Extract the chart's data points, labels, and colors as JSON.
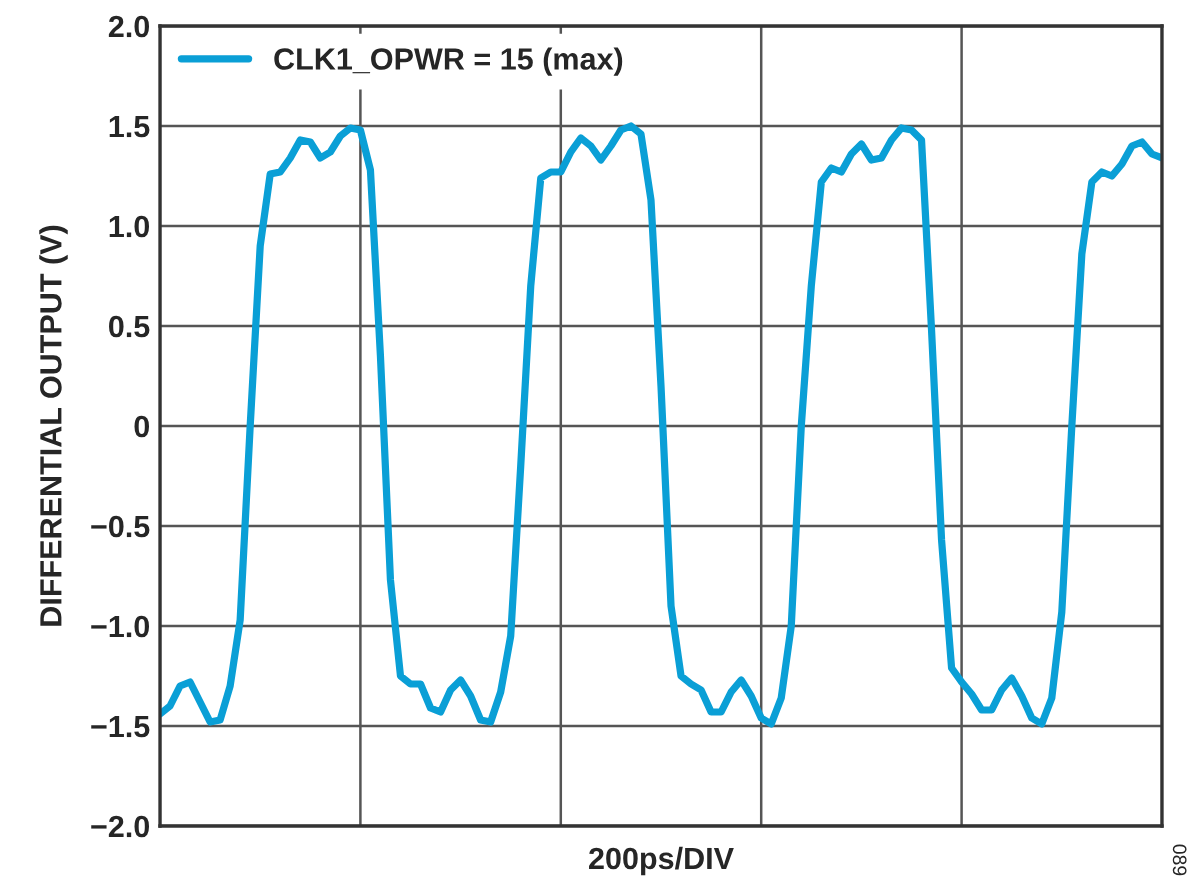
{
  "chart_data": {
    "type": "line",
    "xlabel": "200ps/DIV",
    "ylabel": "DIFFERENTIAL OUTPUT (V)",
    "categories": [
      null,
      null,
      null,
      null,
      null,
      null,
      null,
      null,
      null,
      null,
      null,
      null,
      null,
      null,
      null,
      null,
      null,
      null,
      null,
      null,
      null,
      null,
      null,
      null,
      null,
      null,
      null,
      null,
      null,
      null,
      null,
      null,
      null,
      null,
      null,
      null,
      null,
      null,
      null,
      null,
      null,
      null,
      null,
      null,
      null,
      null,
      null,
      null,
      null,
      null,
      null,
      null,
      null,
      null,
      null,
      null,
      null,
      null,
      null,
      null,
      null,
      null,
      null,
      null,
      null,
      null,
      null,
      null,
      null,
      null,
      null,
      null,
      null,
      null,
      null,
      null,
      null,
      null,
      null,
      null,
      null,
      null,
      null,
      null,
      null,
      null,
      null,
      null,
      null,
      null,
      null,
      null,
      null,
      null,
      null,
      null,
      null,
      null,
      null,
      null,
      null
    ],
    "series": [
      {
        "name": "CLK1_OPWR = 15 (max)",
        "color": "#0a9fd6",
        "values": [
          -1.44,
          -1.4,
          -1.3,
          -1.28,
          -1.38,
          -1.48,
          -1.47,
          -1.3,
          -0.97,
          0,
          0.9,
          1.26,
          1.27,
          1.34,
          1.43,
          1.42,
          1.34,
          1.37,
          1.45,
          1.49,
          1.48,
          1.28,
          0.35,
          -0.77,
          -1.25,
          -1.29,
          -1.29,
          -1.41,
          -1.43,
          -1.32,
          -1.27,
          -1.35,
          -1.47,
          -1.48,
          -1.33,
          -1.05,
          -0.2,
          0.7,
          1.24,
          1.27,
          1.27,
          1.37,
          1.44,
          1.4,
          1.33,
          1.4,
          1.48,
          1.5,
          1.46,
          1.13,
          0.2,
          -0.9,
          -1.25,
          -1.29,
          -1.32,
          -1.43,
          -1.43,
          -1.33,
          -1.27,
          -1.35,
          -1.46,
          -1.49,
          -1.36,
          -1.0,
          0,
          0.7,
          1.22,
          1.29,
          1.27,
          1.36,
          1.41,
          1.33,
          1.34,
          1.43,
          1.49,
          1.48,
          1.43,
          0.48,
          -0.57,
          -1.21,
          -1.28,
          -1.34,
          -1.42,
          -1.42,
          -1.32,
          -1.26,
          -1.35,
          -1.46,
          -1.49,
          -1.36,
          -0.93,
          0,
          0.86,
          1.22,
          1.27,
          1.25,
          1.31,
          1.4,
          1.42,
          1.36,
          1.34
        ]
      }
    ],
    "ylim": [
      -2,
      2
    ],
    "yticks": [
      {
        "value": -2,
        "label": "−2.0"
      },
      {
        "value": -1.5,
        "label": "−1.5"
      },
      {
        "value": -1,
        "label": "−1.0"
      },
      {
        "value": -0.5,
        "label": "−0.5"
      },
      {
        "value": 0,
        "label": "0"
      },
      {
        "value": 0.5,
        "label": "0.5"
      },
      {
        "value": 1,
        "label": "1.0"
      },
      {
        "value": 1.5,
        "label": "1.5"
      },
      {
        "value": 2,
        "label": "2.0"
      }
    ],
    "grid": true,
    "legend": "top left",
    "marker": "none",
    "line_style": "solid",
    "annotations": [
      "089"
    ]
  }
}
